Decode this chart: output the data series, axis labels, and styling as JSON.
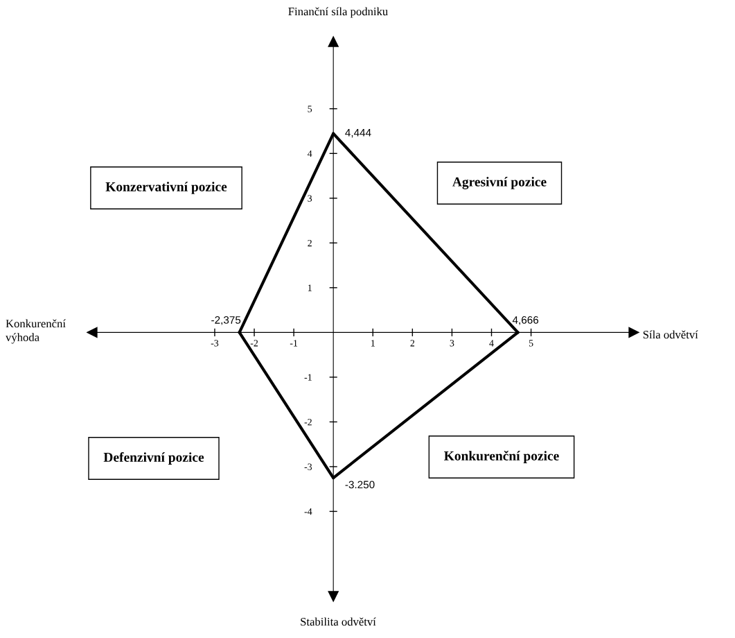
{
  "chart_data": {
    "type": "line",
    "xlabel": "Síla odvětví",
    "ylabel": "Finanční síla podniku",
    "series": [
      {
        "color": "#000000",
        "x": [
          0,
          4.666
        ],
        "values": [
          4.444,
          0
        ]
      },
      {
        "color": "#000000",
        "x": [
          4.666,
          0
        ],
        "values": [
          0,
          -3.25
        ]
      },
      {
        "color": "#000000",
        "x": [
          0,
          -2.375
        ],
        "values": [
          -3.25,
          0
        ]
      },
      {
        "color": "#000000",
        "x": [
          -2.375,
          0
        ],
        "values": [
          0,
          4.444
        ]
      }
    ],
    "xlim": [
      -6.1,
      7.6
    ],
    "ylim": [
      -5.9,
      6.5
    ],
    "xticks": [
      -3,
      -2,
      -1,
      1,
      2,
      3,
      4,
      5
    ],
    "yticks": [
      -4,
      -3,
      -2,
      -1,
      1,
      2,
      3,
      4,
      5
    ],
    "marker": "none",
    "line_style": "solid",
    "grid": false,
    "annotations": [
      "Konzervativní pozice",
      "Agresivní pozice",
      "Defenzivní pozice",
      "Konkurenční pozice",
      "Konkurenční\nvýhoda",
      "Stabilita odvětví",
      {
        "text": "4,444",
        "x": 0,
        "y": 4.444
      },
      {
        "text": "4,666",
        "x": 4.666,
        "y": 0
      },
      {
        "text": "-3.250",
        "x": 0,
        "y": -3.25
      },
      {
        "text": "-2,375",
        "x": -2.375,
        "y": 0
      }
    ]
  }
}
